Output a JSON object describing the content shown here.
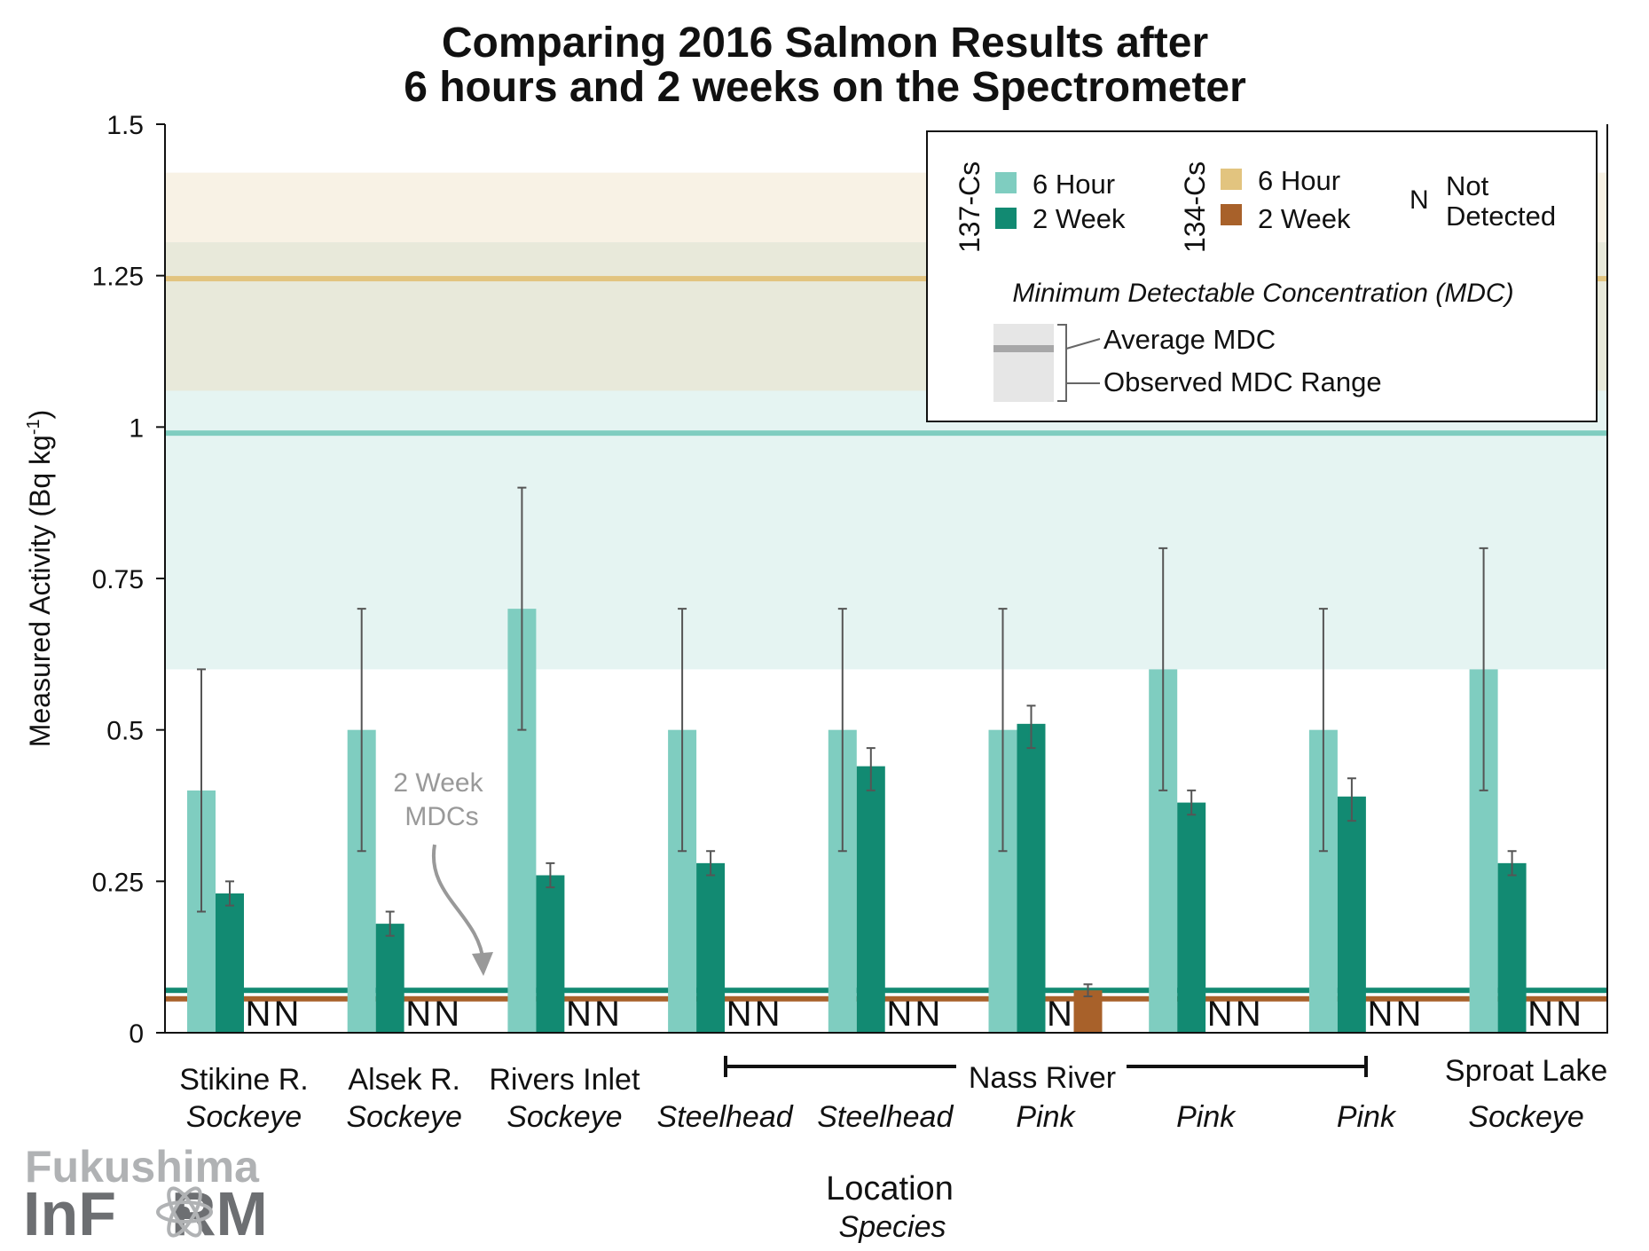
{
  "chart_data": {
    "type": "bar",
    "title": "Comparing 2016 Salmon Results after",
    "title_line2": "6 hours and 2 weeks on the Spectrometer",
    "ylabel": "Measured Activity (Bq kg",
    "ylabel_sup": "-1",
    "ylabel_end": ")",
    "xlabel": "Location",
    "xlabel_sub": "Species",
    "ylim": [
      0,
      1.5
    ],
    "yticks": [
      0,
      0.25,
      0.5,
      0.75,
      1,
      1.25,
      1.5
    ],
    "ytick_labels": [
      "0",
      "0.25",
      "0.5",
      "0.75",
      "1",
      "1.25",
      "1.5"
    ],
    "grid": false,
    "legend_placement": "top-right",
    "categories": [
      {
        "location": "Stikine R.",
        "species": "Sockeye"
      },
      {
        "location": "Alsek R.",
        "species": "Sockeye"
      },
      {
        "location": "Rivers Inlet",
        "species": "Sockeye"
      },
      {
        "location": "",
        "species": "Steelhead"
      },
      {
        "location": "",
        "species": "Steelhead"
      },
      {
        "location": "Nass River",
        "species": "Pink"
      },
      {
        "location": "",
        "species": "Pink"
      },
      {
        "location": "",
        "species": "Pink"
      },
      {
        "location": "Sproat Lake",
        "species": "Sockeye"
      }
    ],
    "group_bracket_label": "Nass River",
    "series": [
      {
        "name": "137-Cs 6 Hour",
        "color": "#7fcdc0",
        "values": [
          0.4,
          0.5,
          0.7,
          0.5,
          0.5,
          0.5,
          0.6,
          0.5,
          0.6
        ],
        "err_low": [
          0.2,
          0.3,
          0.5,
          0.3,
          0.3,
          0.3,
          0.4,
          0.3,
          0.4
        ],
        "err_high": [
          0.6,
          0.7,
          0.9,
          0.7,
          0.7,
          0.7,
          0.8,
          0.7,
          0.8
        ]
      },
      {
        "name": "137-Cs 2 Week",
        "color": "#128a72",
        "values": [
          0.23,
          0.18,
          0.26,
          0.28,
          0.44,
          0.51,
          0.38,
          0.39,
          0.28
        ],
        "err_low": [
          0.21,
          0.16,
          0.24,
          0.26,
          0.4,
          0.47,
          0.36,
          0.35,
          0.26
        ],
        "err_high": [
          0.25,
          0.2,
          0.28,
          0.3,
          0.47,
          0.54,
          0.4,
          0.42,
          0.3
        ]
      },
      {
        "name": "134-Cs 6 Hour",
        "color": "#e2c47f",
        "values": [
          null,
          null,
          null,
          null,
          null,
          null,
          null,
          null,
          null
        ],
        "not_detected": [
          true,
          true,
          true,
          true,
          true,
          true,
          true,
          true,
          true
        ]
      },
      {
        "name": "134-Cs 2 Week",
        "color": "#a8612a",
        "values": [
          null,
          null,
          null,
          null,
          null,
          0.07,
          null,
          null,
          null
        ],
        "err_low": [
          null,
          null,
          null,
          null,
          null,
          0.06,
          null,
          null,
          null
        ],
        "err_high": [
          null,
          null,
          null,
          null,
          null,
          0.08,
          null,
          null,
          null
        ],
        "not_detected": [
          true,
          true,
          true,
          true,
          true,
          false,
          true,
          true,
          true
        ]
      }
    ],
    "mdc": [
      {
        "series": "137-Cs 6 Hour",
        "average": 0.99,
        "range": [
          0.6,
          1.305
        ],
        "color": "#7fcdc0"
      },
      {
        "series": "134-Cs 6 Hour",
        "average": 1.245,
        "range": [
          1.06,
          1.42
        ],
        "color": "#e2c47f"
      },
      {
        "series": "137-Cs 2 Week",
        "average": 0.07,
        "color": "#128a72"
      },
      {
        "series": "134-Cs 2 Week",
        "average": 0.056,
        "color": "#a8612a"
      }
    ],
    "nd_symbol": "N",
    "annotation": {
      "line1": "2 Week",
      "line2": "MDCs"
    }
  },
  "legend": {
    "group1": "137-Cs",
    "group2": "134-Cs",
    "six_hour": "6 Hour",
    "two_week": "2 Week",
    "n_symbol": "N",
    "not": "Not",
    "detected": "Detected",
    "mdc_title": "Minimum Detectable Concentration (MDC)",
    "avg_mdc": "Average MDC",
    "range_mdc": "Observed MDC Range"
  },
  "logo": {
    "line1": "Fukushima",
    "line2a": "InF",
    "line2b": "RM"
  }
}
